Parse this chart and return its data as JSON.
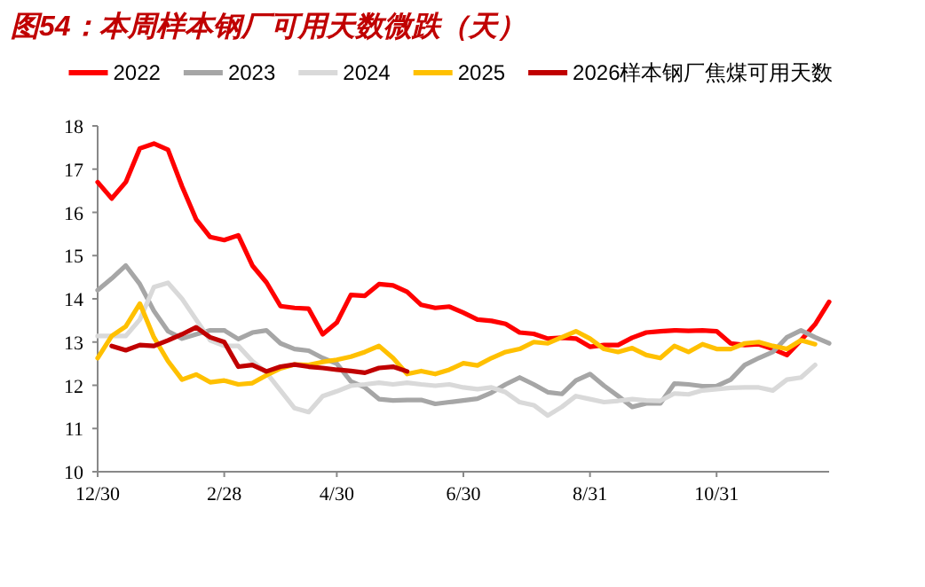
{
  "chart_data": {
    "type": "line",
    "title": "图54：本周样本钢厂可用天数微跌（天）",
    "categories": [
      "12/30",
      null,
      null,
      null,
      null,
      null,
      null,
      null,
      null,
      "2/28",
      null,
      null,
      null,
      null,
      null,
      null,
      null,
      "4/30",
      null,
      null,
      null,
      null,
      null,
      null,
      null,
      null,
      "6/30",
      null,
      null,
      null,
      null,
      null,
      null,
      null,
      null,
      "8/31",
      null,
      null,
      null,
      null,
      null,
      null,
      null,
      null,
      "10/31",
      null,
      null,
      null,
      null,
      null,
      null,
      null,
      null
    ],
    "ylim": [
      10,
      18
    ],
    "yticks": [
      10,
      11,
      12,
      13,
      14,
      15,
      16,
      17,
      18
    ],
    "grid": false,
    "legend": "top",
    "marker": "none",
    "line_style": "solid",
    "series": [
      {
        "name": "2022",
        "color": "#ff0000",
        "values": [
          16.7,
          16.32,
          16.7,
          17.48,
          17.59,
          17.45,
          16.6,
          15.84,
          15.43,
          15.36,
          15.47,
          14.77,
          14.38,
          13.83,
          13.79,
          13.77,
          13.18,
          13.45,
          14.09,
          14.07,
          14.34,
          14.31,
          14.16,
          13.86,
          13.79,
          13.82,
          13.68,
          13.52,
          13.49,
          13.42,
          13.22,
          13.19,
          13.08,
          13.1,
          13.08,
          12.89,
          12.93,
          12.93,
          13.1,
          13.22,
          13.25,
          13.27,
          13.26,
          13.27,
          13.25,
          12.97,
          12.93,
          12.95,
          12.84,
          12.7,
          13.04,
          13.41,
          13.93
        ]
      },
      {
        "name": "2023",
        "color": "#a6a6a6",
        "values": [
          14.2,
          14.47,
          14.77,
          14.34,
          13.72,
          13.25,
          13.08,
          13.18,
          13.27,
          13.27,
          13.07,
          13.22,
          13.27,
          12.97,
          12.84,
          12.8,
          12.63,
          12.5,
          12.09,
          11.95,
          11.68,
          11.65,
          11.66,
          11.66,
          11.57,
          11.61,
          11.65,
          11.69,
          11.83,
          12.02,
          12.18,
          12.02,
          11.84,
          11.8,
          12.11,
          12.26,
          11.99,
          11.75,
          11.5,
          11.58,
          11.58,
          12.04,
          12.02,
          11.98,
          11.98,
          12.13,
          12.47,
          12.63,
          12.77,
          13.11,
          13.27,
          13.11,
          12.97
        ]
      },
      {
        "name": "2024",
        "color": "#d9d9d9",
        "values": [
          13.14,
          13.14,
          13.14,
          13.52,
          14.27,
          14.37,
          14.0,
          13.52,
          13.04,
          12.91,
          12.91,
          12.56,
          12.29,
          11.88,
          11.47,
          11.38,
          11.75,
          11.86,
          11.99,
          12.02,
          12.06,
          12.02,
          12.06,
          12.02,
          11.99,
          12.02,
          11.95,
          11.91,
          11.95,
          11.84,
          11.61,
          11.54,
          11.3,
          11.5,
          11.75,
          11.68,
          11.61,
          11.64,
          11.68,
          11.65,
          11.64,
          11.81,
          11.79,
          11.88,
          11.91,
          11.94,
          11.95,
          11.95,
          11.88,
          12.13,
          12.18,
          12.47,
          null
        ]
      },
      {
        "name": "2025",
        "color": "#ffc000",
        "values": [
          12.63,
          13.14,
          13.36,
          13.89,
          13.11,
          12.56,
          12.13,
          12.25,
          12.07,
          12.11,
          12.02,
          12.05,
          12.23,
          12.39,
          12.48,
          12.47,
          12.54,
          12.59,
          12.66,
          12.77,
          12.91,
          12.63,
          12.26,
          12.33,
          12.26,
          12.36,
          12.51,
          12.46,
          12.63,
          12.77,
          12.84,
          13.0,
          12.97,
          13.11,
          13.25,
          13.08,
          12.84,
          12.77,
          12.86,
          12.7,
          12.63,
          12.91,
          12.77,
          12.95,
          12.84,
          12.84,
          12.97,
          13.0,
          12.91,
          12.84,
          13.04,
          12.95,
          null
        ]
      },
      {
        "name": "2026样本钢厂焦煤可用天数",
        "color": "#c00000",
        "values": [
          null,
          12.91,
          12.81,
          12.93,
          12.91,
          13.04,
          13.18,
          13.34,
          13.11,
          13.0,
          12.43,
          12.47,
          12.32,
          12.43,
          12.48,
          12.43,
          12.4,
          12.36,
          12.33,
          12.29,
          12.4,
          12.43,
          12.32,
          null,
          null,
          null,
          null,
          null,
          null,
          null,
          null,
          null,
          null,
          null,
          null,
          null,
          null,
          null,
          null,
          null,
          null,
          null,
          null,
          null,
          null,
          null,
          null,
          null,
          null,
          null,
          null,
          null,
          null
        ]
      }
    ]
  }
}
